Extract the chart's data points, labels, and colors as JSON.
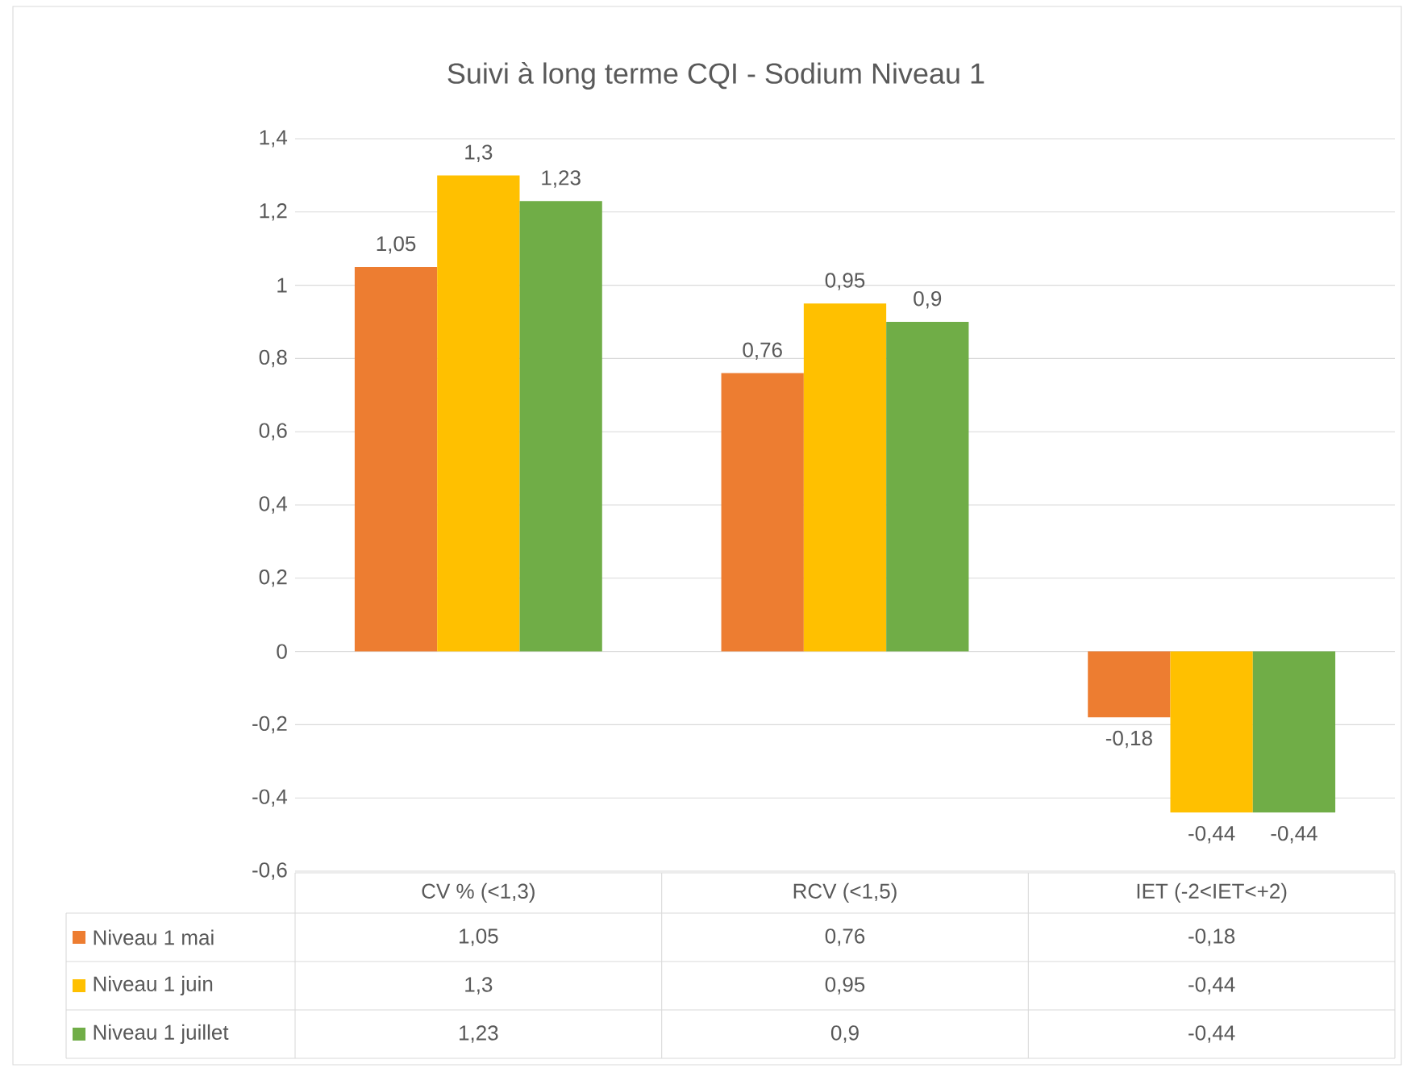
{
  "chart_data": {
    "type": "bar",
    "title": "Suivi à long terme CQI - Sodium Niveau 1",
    "categories": [
      "CV % (<1,3)",
      "RCV  (<1,5)",
      "IET (-2<IET<+2)"
    ],
    "series": [
      {
        "name": "Niveau 1 mai",
        "color": "#ed7d31",
        "values": [
          1.05,
          0.76,
          -0.18
        ],
        "value_labels": [
          "1,05",
          "0,76",
          "-0,18"
        ]
      },
      {
        "name": "Niveau 1 juin",
        "color": "#ffc000",
        "values": [
          1.3,
          0.95,
          -0.44
        ],
        "value_labels": [
          "1,3",
          "0,95",
          "-0,44"
        ]
      },
      {
        "name": "Niveau 1 juillet",
        "color": "#70ad47",
        "values": [
          1.23,
          0.9,
          -0.44
        ],
        "value_labels": [
          "1,23",
          "0,9",
          "-0,44"
        ]
      }
    ],
    "ylim": [
      -0.6,
      1.4
    ],
    "yticks": [
      {
        "value": -0.6,
        "label": "-0,6"
      },
      {
        "value": -0.4,
        "label": "-0,4"
      },
      {
        "value": -0.2,
        "label": "-0,2"
      },
      0,
      {
        "value": 0.2,
        "label": "0,2"
      },
      {
        "value": 0.4,
        "label": "0,4"
      },
      {
        "value": 0.6,
        "label": "0,6"
      },
      {
        "value": 0.8,
        "label": "0,8"
      },
      1,
      {
        "value": 1.2,
        "label": "1,2"
      },
      {
        "value": 1.4,
        "label": "1,4"
      }
    ],
    "grid": "y",
    "legend": "bottom"
  }
}
